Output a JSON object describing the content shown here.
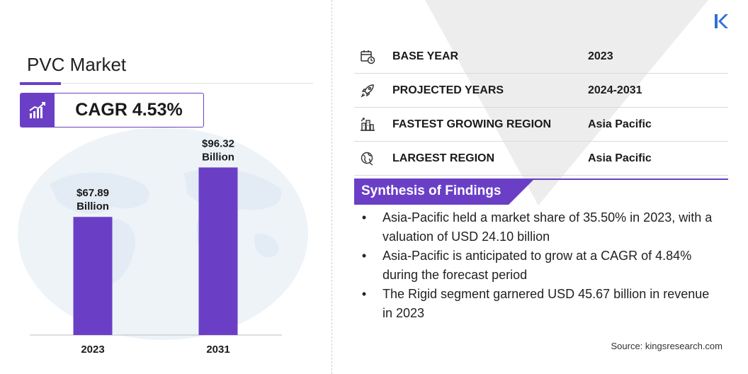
{
  "title": "PVC Market",
  "cagr_label": "CAGR 4.53%",
  "info_rows": [
    {
      "label": "BASE YEAR",
      "value": "2023",
      "icon": "calendar-clock-icon"
    },
    {
      "label": "PROJECTED YEARS",
      "value": "2024-2031",
      "icon": "rocket-icon"
    },
    {
      "label": "FASTEST GROWING REGION",
      "value": "Asia Pacific",
      "icon": "city-skyline-icon"
    },
    {
      "label": "LARGEST REGION",
      "value": "Asia Pacific",
      "icon": "globe-icon"
    }
  ],
  "synthesis": {
    "title": "Synthesis of Findings",
    "bullet": "•",
    "findings": [
      "Asia-Pacific held a market share of 35.50% in 2023, with a valuation of USD 24.10 billion",
      "Asia-Pacific is anticipated to grow at a CAGR of 4.84% during the forecast period",
      "The Rigid segment garnered USD 45.67 billion in revenue in 2023"
    ]
  },
  "source": "Source:  kingsresearch.com",
  "colors": {
    "accent": "#6a3fc6",
    "bar": "#6a3fc6",
    "text": "#1a1a1a"
  },
  "chart_data": {
    "type": "bar",
    "categories": [
      "2023",
      "2031"
    ],
    "values": [
      67.89,
      96.32
    ],
    "data_labels": [
      [
        "$67.89",
        "Billion"
      ],
      [
        "$96.32",
        "Billion"
      ]
    ],
    "unit": "Billion USD",
    "ylim": [
      0,
      103
    ],
    "grid": false,
    "legend": "none"
  }
}
